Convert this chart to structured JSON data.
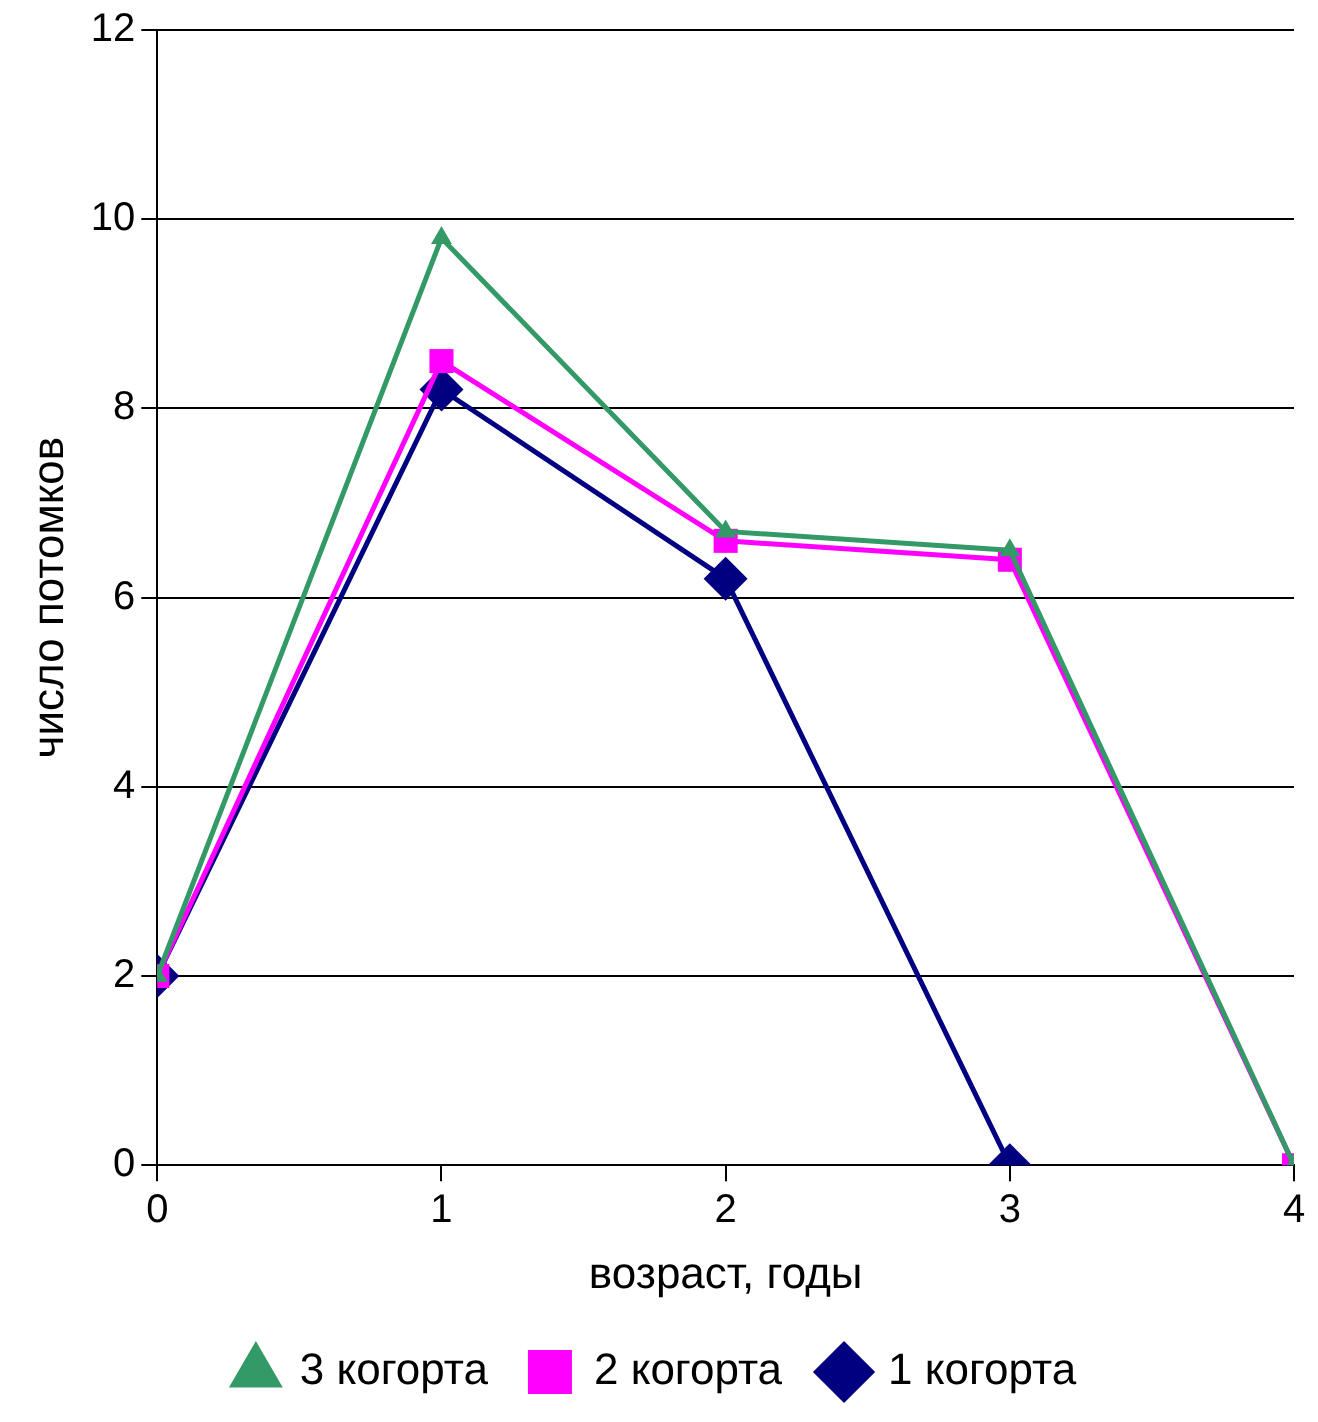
{
  "chart_data": {
    "type": "line",
    "xlabel": "возраст, годы",
    "ylabel": "число потомков",
    "x": [
      0,
      1,
      2,
      3,
      4
    ],
    "xlim": [
      0,
      4
    ],
    "xticks": [
      0,
      1,
      2,
      3,
      4
    ],
    "ylim": [
      0,
      12
    ],
    "yticks": [
      0,
      2,
      4,
      6,
      8,
      10,
      12
    ],
    "grid": "y",
    "legend": "bottom",
    "line_style": "solid",
    "series": [
      {
        "name": "1 когорта",
        "color": "#000080",
        "marker": "diamond",
        "values": [
          2,
          8.2,
          6.2,
          0,
          null
        ]
      },
      {
        "name": "2 когорта",
        "color": "#ff00ff",
        "marker": "square",
        "values": [
          2,
          8.5,
          6.6,
          6.4,
          0
        ]
      },
      {
        "name": "3 когорта",
        "color": "#339966",
        "marker": "triangle",
        "values": [
          2,
          9.8,
          6.7,
          6.5,
          0
        ]
      }
    ]
  }
}
